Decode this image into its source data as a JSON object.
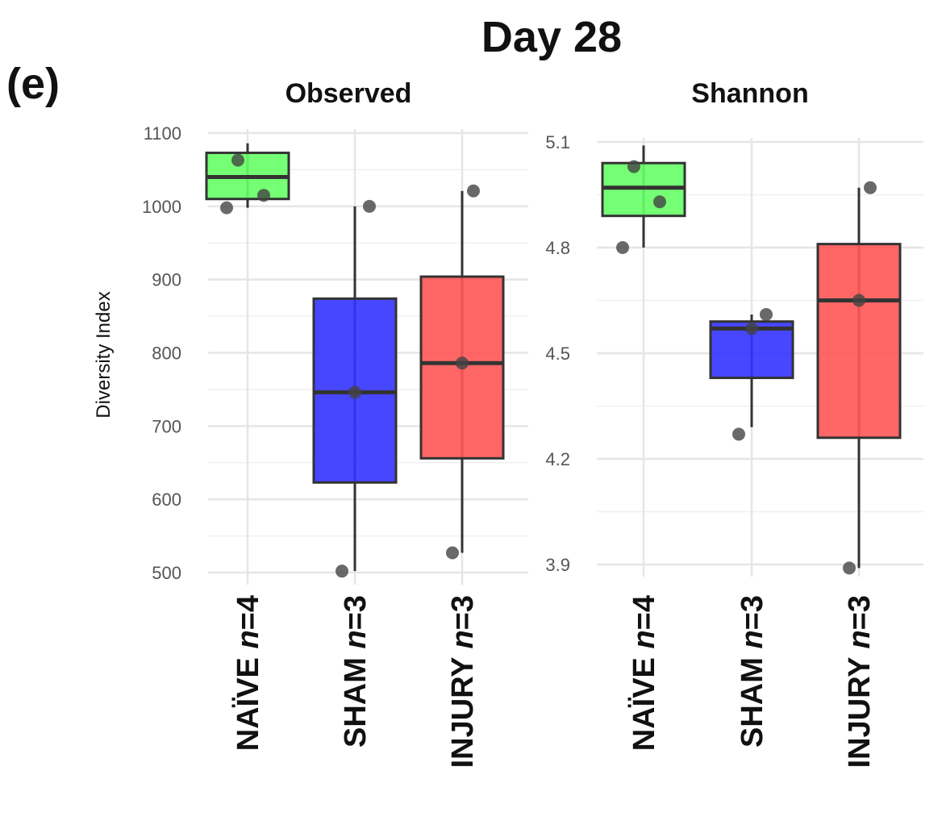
{
  "figure": {
    "title": "Day 28",
    "panel_tag": "(e)",
    "ylabel": "Diversity Index"
  },
  "chart_data": [
    {
      "type": "box",
      "title": "Observed",
      "ylabel": "Diversity Index",
      "ylim": [
        480,
        1130
      ],
      "yticks": [
        500,
        600,
        700,
        800,
        900,
        1000,
        1100
      ],
      "categories": [
        {
          "name": "NAÏVE",
          "n": "n",
          "eq": "=4"
        },
        {
          "name": "SHAM",
          "n": "n",
          "eq": "=3"
        },
        {
          "name": "INJURY",
          "n": "n",
          "eq": "=3"
        }
      ],
      "boxes": [
        {
          "group": "NAÏVE",
          "q1": 1010,
          "median": 1040,
          "q3": 1073,
          "whisker_low": 998,
          "whisker_high": 1086,
          "color": "#66ff66",
          "points": [
            998,
            1015,
            1063
          ]
        },
        {
          "group": "SHAM",
          "q1": 623,
          "median": 746,
          "q3": 874,
          "whisker_low": 502,
          "whisker_high": 1000,
          "color": "#3333ff",
          "points": [
            502,
            746,
            1000
          ]
        },
        {
          "group": "INJURY",
          "q1": 656,
          "median": 786,
          "q3": 904,
          "whisker_low": 527,
          "whisker_high": 1021,
          "color": "#ff5555",
          "points": [
            527,
            786,
            1021
          ]
        }
      ]
    },
    {
      "type": "box",
      "title": "Shannon",
      "ylabel": "",
      "ylim": [
        3.87,
        5.14
      ],
      "yticks": [
        3.9,
        4.2,
        4.5,
        4.8,
        5.1
      ],
      "ytick_labels": [
        "3.9",
        "4.2",
        "4.5",
        "4.8",
        "5.1"
      ],
      "categories": [
        {
          "name": "NAÏVE",
          "n": "n",
          "eq": "=4"
        },
        {
          "name": "SHAM",
          "n": "n",
          "eq": "=3"
        },
        {
          "name": "INJURY",
          "n": "n",
          "eq": "=3"
        }
      ],
      "boxes": [
        {
          "group": "NAÏVE",
          "q1": 4.89,
          "median": 4.97,
          "q3": 5.04,
          "whisker_low": 4.8,
          "whisker_high": 5.09,
          "color": "#66ff66",
          "points": [
            4.8,
            4.93,
            5.03
          ]
        },
        {
          "group": "SHAM",
          "q1": 4.43,
          "median": 4.57,
          "q3": 4.59,
          "whisker_low": 4.29,
          "whisker_high": 4.61,
          "color": "#3333ff",
          "points": [
            4.27,
            4.57,
            4.61
          ]
        },
        {
          "group": "INJURY",
          "q1": 4.26,
          "median": 4.65,
          "q3": 4.81,
          "whisker_low": 3.89,
          "whisker_high": 4.97,
          "color": "#ff5555",
          "points": [
            3.89,
            4.65,
            4.97
          ]
        }
      ]
    }
  ]
}
